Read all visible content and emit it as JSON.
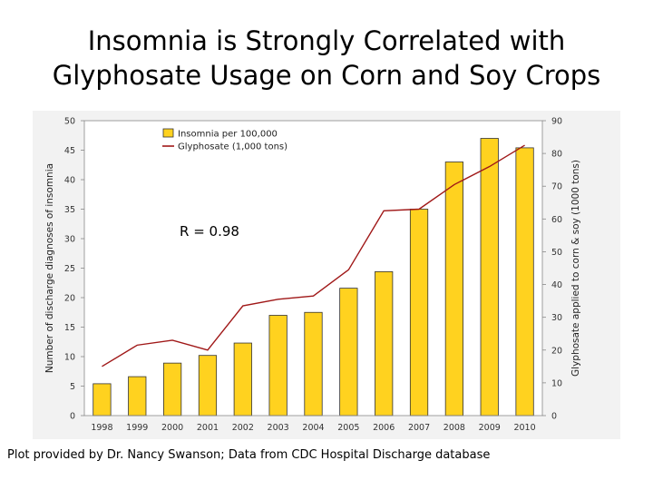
{
  "title_lines": [
    "Insomnia is Strongly Correlated with",
    "Glyphosate Usage on Corn and Soy Crops"
  ],
  "caption": "Plot provided by Dr. Nancy Swanson; Data from CDC Hospital Discharge database",
  "chart_data": {
    "type": "bar",
    "categories": [
      "1998",
      "1999",
      "2000",
      "2001",
      "2002",
      "2003",
      "2004",
      "2005",
      "2006",
      "2007",
      "2008",
      "2009",
      "2010"
    ],
    "series": [
      {
        "name": "Insomnia per 100,000",
        "type": "bar",
        "axis": "left",
        "color": "#ffd21f",
        "values": [
          5.4,
          6.6,
          8.9,
          10.2,
          12.3,
          17.0,
          17.5,
          21.6,
          24.4,
          35.0,
          43.0,
          47.0,
          45.4
        ]
      },
      {
        "name": "Glyphosate (1,000 tons)",
        "type": "line",
        "axis": "right",
        "color": "#a01818",
        "values": [
          15,
          21.5,
          23,
          20,
          33.5,
          35.5,
          36.5,
          44.5,
          62.5,
          63,
          70.5,
          76,
          82.5
        ]
      }
    ],
    "ylabel": "Number of discharge diagnoses of insomnia",
    "y2label": "Glyphosate applied to corn & soy (1000 tons)",
    "ylim": [
      0,
      50
    ],
    "y2lim": [
      0,
      90
    ],
    "yticks": [
      0,
      5,
      10,
      15,
      20,
      25,
      30,
      35,
      40,
      45,
      50
    ],
    "y2ticks": [
      0,
      10,
      20,
      30,
      40,
      50,
      60,
      70,
      80,
      90
    ],
    "annotation": "R = 0.98",
    "grid": false,
    "legend": "top-center"
  }
}
